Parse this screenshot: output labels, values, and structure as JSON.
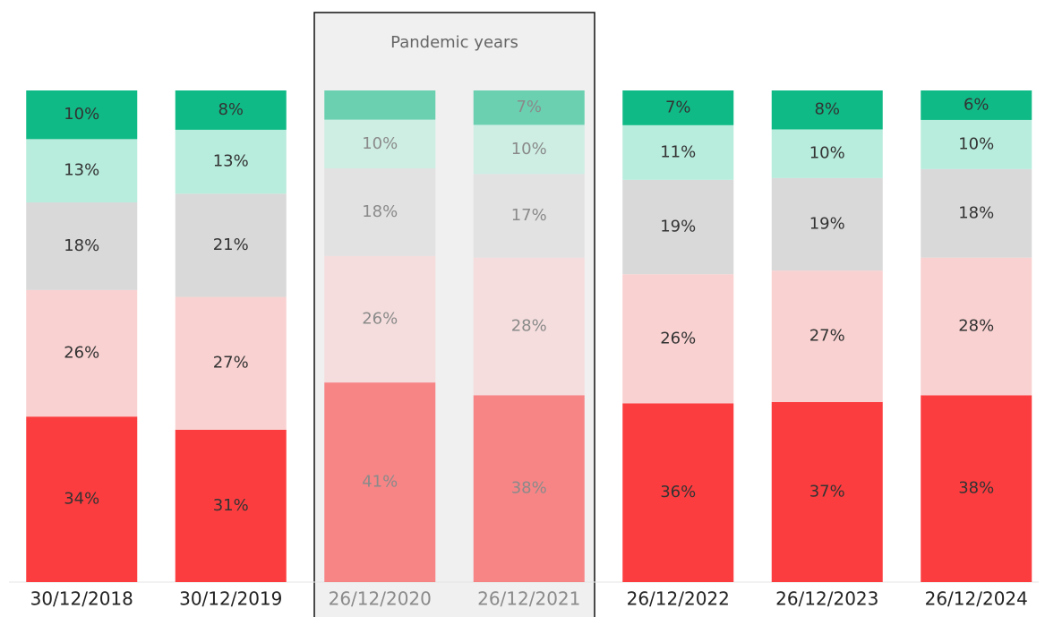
{
  "chart_data": {
    "type": "stacked-bar",
    "stack": "percent",
    "annotation": "Pandemic years",
    "faded_categories": [
      "26/12/2020",
      "26/12/2021"
    ],
    "categories": [
      "30/12/2018",
      "30/12/2019",
      "26/12/2020",
      "26/12/2021",
      "26/12/2022",
      "26/12/2023",
      "26/12/2024"
    ],
    "series": [
      {
        "color": "#fc3d3f",
        "values": [
          34,
          31,
          41,
          38,
          36,
          37,
          38
        ],
        "value_labels": [
          "34%",
          "31%",
          "41%",
          "38%",
          "36%",
          "37%",
          "38%"
        ]
      },
      {
        "color": "#f9d1d1",
        "values": [
          26,
          27,
          26,
          28,
          26,
          27,
          28
        ],
        "value_labels": [
          "26%",
          "27%",
          "26%",
          "28%",
          "26%",
          "27%",
          "28%"
        ]
      },
      {
        "color": "#d9d9d9",
        "values": [
          18,
          21,
          18,
          17,
          19,
          19,
          18
        ],
        "value_labels": [
          "18%",
          "21%",
          "18%",
          "17%",
          "19%",
          "19%",
          "18%"
        ]
      },
      {
        "color": "#b8ecdc",
        "values": [
          13,
          13,
          10,
          10,
          11,
          10,
          10
        ],
        "value_labels": [
          "13%",
          "13%",
          "10%",
          "10%",
          "11%",
          "10%",
          "10%"
        ]
      },
      {
        "color": "#10ba86",
        "values": [
          10,
          8,
          6,
          7,
          7,
          8,
          6
        ],
        "value_labels": [
          "10%",
          "8%",
          null,
          "7%",
          "7%",
          "8%",
          "6%"
        ]
      }
    ]
  }
}
